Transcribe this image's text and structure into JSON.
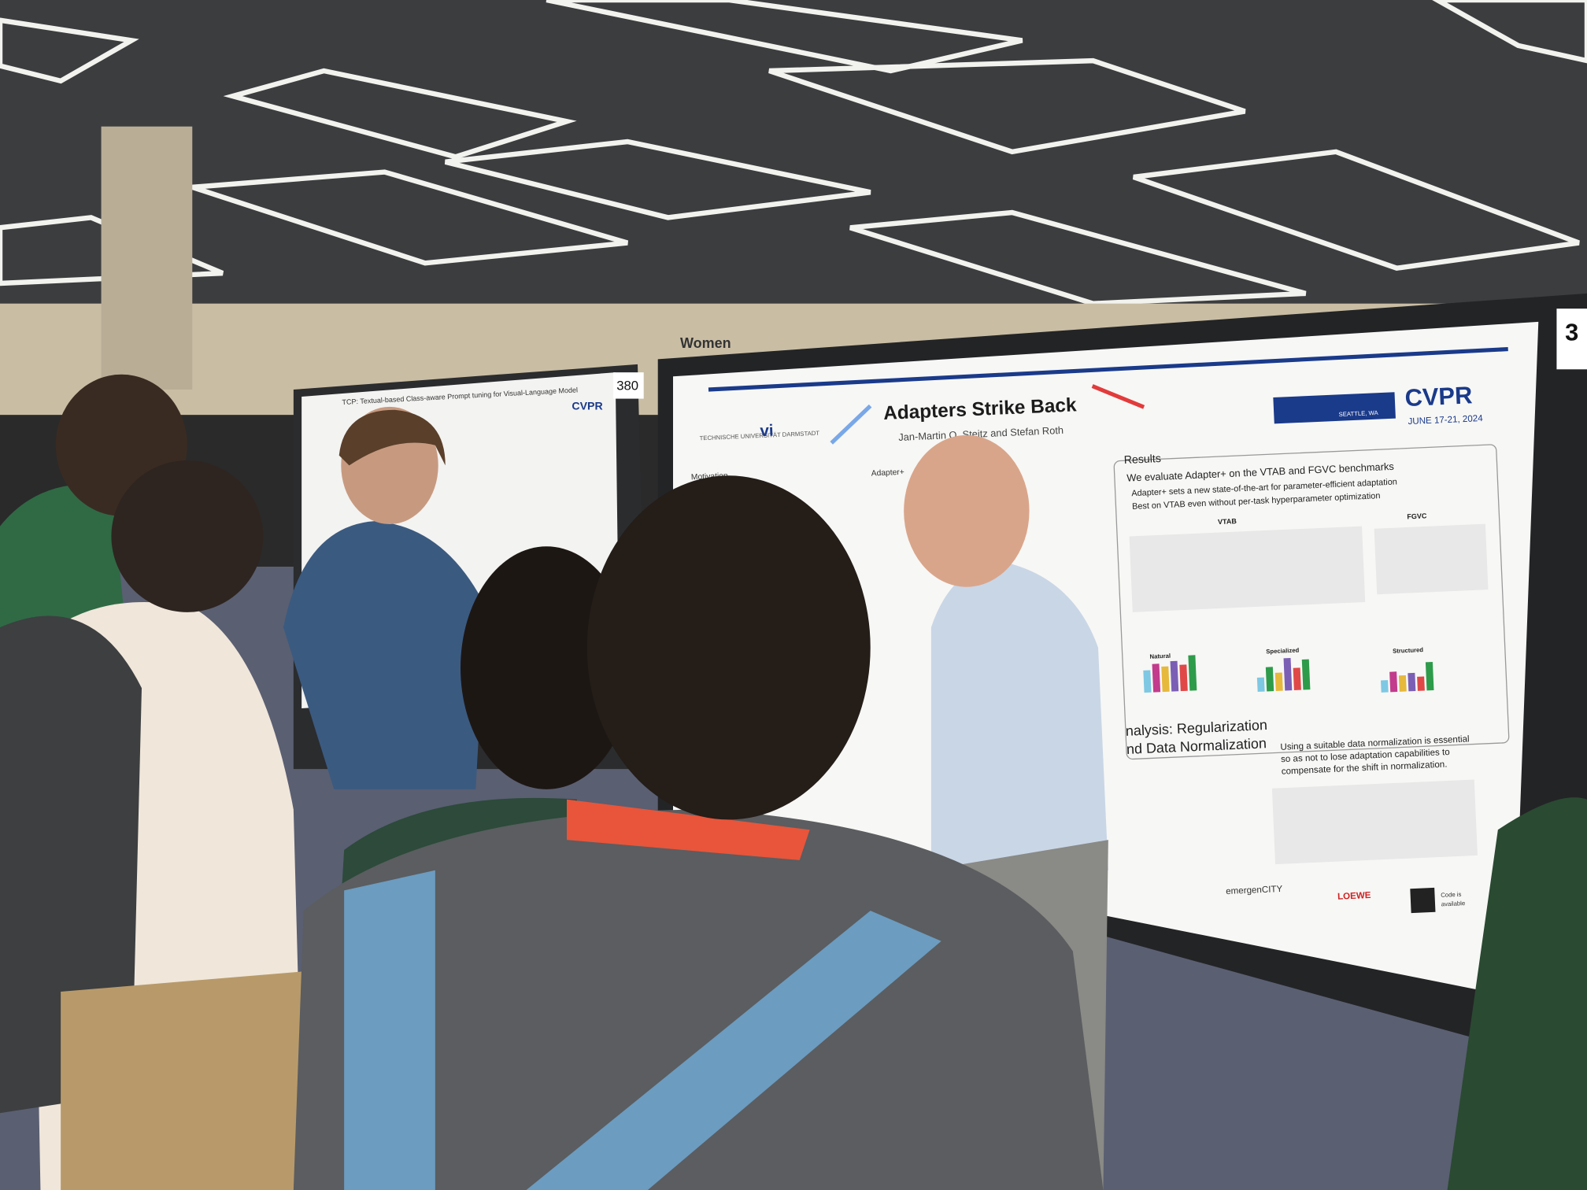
{
  "signage": {
    "hall_sign": "Women",
    "board_left": "380",
    "board_right": "3"
  },
  "left_poster": {
    "title": "TCP: Textual-based Class-aware Prompt tuning for Visual-Language Model",
    "logo": "CVPR"
  },
  "main_poster": {
    "title": "Adapters Strike Back",
    "authors": "Jan-Martin O. Steitz and Stefan Roth",
    "institution": "TECHNISCHE UNIVERSITÄT DARMSTADT",
    "lab": "vi",
    "conference": "CVPR",
    "location": "SEATTLE, WA",
    "dates": "JUNE 17-21, 2024",
    "motivation_heading": "Motivation",
    "method_heading": "Adapter+",
    "results_heading": "Results",
    "results_intro": "We evaluate Adapter+ on the VTAB and FGVC benchmarks",
    "results_bullets": [
      "Adapter+ sets a new state-of-the-art for parameter-efficient adaptation",
      "Best on VTAB even without per-task hyperparameter optimization"
    ],
    "table_titles": [
      "VTAB",
      "FGVC"
    ],
    "chart_titles": [
      "Natural",
      "Specialized",
      "Structured"
    ],
    "analysis_heading": [
      "nalysis: Regularization",
      "nd Data Normalization"
    ],
    "analysis_text": [
      "Using a suitable data normalization is essential",
      "so as not to lose adaptation capabilities to",
      "compensate for the shift in normalization."
    ],
    "sponsors": [
      "emergenCITY",
      "LOEWE"
    ],
    "code_note": [
      "Code is",
      "available"
    ]
  }
}
